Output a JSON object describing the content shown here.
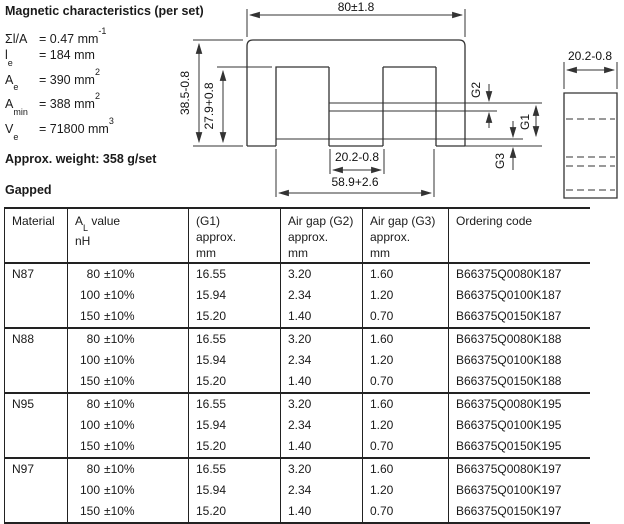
{
  "magnetic": {
    "title": "Magnetic characteristics (per set)",
    "equals": "=",
    "params": [
      {
        "sym_main": "Σl/A",
        "sym_sub": "",
        "value": "0.47",
        "unit": "mm",
        "unit_exp": "-1"
      },
      {
        "sym_main": "l",
        "sym_sub": "e",
        "value": "184",
        "unit": "mm",
        "unit_exp": ""
      },
      {
        "sym_main": "A",
        "sym_sub": "e",
        "value": "390",
        "unit": "mm",
        "unit_exp": "2"
      },
      {
        "sym_main": "A",
        "sym_sub": "min",
        "value": "388",
        "unit": "mm",
        "unit_exp": "2"
      },
      {
        "sym_main": "V",
        "sym_sub": "e",
        "value": "71800",
        "unit": "mm",
        "unit_exp": "3"
      }
    ],
    "weight": "Approx. weight: 358 g/set"
  },
  "drawing": {
    "front": {
      "width": "80±1.8",
      "height": "38.5-0.8",
      "window_height": "27.9+0.8",
      "center_leg": "20.2-0.8",
      "window_span": "58.9+2.6",
      "gap_g1": "G1",
      "gap_g2": "G2",
      "gap_g3": "G3"
    },
    "side": {
      "width": "20.2-0.8"
    }
  },
  "gapped_label": "Gapped",
  "table": {
    "headers": [
      {
        "lines": [
          "Material"
        ]
      },
      {
        "lines": [
          {
            "main": "A",
            "sub": "L",
            "rest": " value"
          },
          "nH"
        ]
      },
      {
        "lines": [
          "(G1)",
          "approx.",
          "mm"
        ]
      },
      {
        "lines": [
          "Air gap (G2)",
          "approx.",
          "mm"
        ]
      },
      {
        "lines": [
          "Air gap (G3)",
          "approx.",
          "mm"
        ]
      },
      {
        "lines": [
          "Ordering code"
        ]
      }
    ],
    "groups": [
      {
        "material": "N87",
        "rows": [
          {
            "al": "80",
            "tol": "±10%",
            "g1": "16.55",
            "g2": "3.20",
            "g3": "1.60",
            "code": "B66375Q0080K187"
          },
          {
            "al": "100",
            "tol": "±10%",
            "g1": "15.94",
            "g2": "2.34",
            "g3": "1.20",
            "code": "B66375Q0100K187"
          },
          {
            "al": "150",
            "tol": "±10%",
            "g1": "15.20",
            "g2": "1.40",
            "g3": "0.70",
            "code": "B66375Q0150K187"
          }
        ]
      },
      {
        "material": "N88",
        "rows": [
          {
            "al": "80",
            "tol": "±10%",
            "g1": "16.55",
            "g2": "3.20",
            "g3": "1.60",
            "code": "B66375Q0080K188"
          },
          {
            "al": "100",
            "tol": "±10%",
            "g1": "15.94",
            "g2": "2.34",
            "g3": "1.20",
            "code": "B66375Q0100K188"
          },
          {
            "al": "150",
            "tol": "±10%",
            "g1": "15.20",
            "g2": "1.40",
            "g3": "0.70",
            "code": "B66375Q0150K188"
          }
        ]
      },
      {
        "material": "N95",
        "rows": [
          {
            "al": "80",
            "tol": "±10%",
            "g1": "16.55",
            "g2": "3.20",
            "g3": "1.60",
            "code": "B66375Q0080K195"
          },
          {
            "al": "100",
            "tol": "±10%",
            "g1": "15.94",
            "g2": "2.34",
            "g3": "1.20",
            "code": "B66375Q0100K195"
          },
          {
            "al": "150",
            "tol": "±10%",
            "g1": "15.20",
            "g2": "1.40",
            "g3": "0.70",
            "code": "B66375Q0150K195"
          }
        ]
      },
      {
        "material": "N97",
        "rows": [
          {
            "al": "80",
            "tol": "±10%",
            "g1": "16.55",
            "g2": "3.20",
            "g3": "1.60",
            "code": "B66375Q0080K197"
          },
          {
            "al": "100",
            "tol": "±10%",
            "g1": "15.94",
            "g2": "2.34",
            "g3": "1.20",
            "code": "B66375Q0100K197"
          },
          {
            "al": "150",
            "tol": "±10%",
            "g1": "15.20",
            "g2": "1.40",
            "g3": "0.70",
            "code": "B66375Q0150K197"
          }
        ]
      }
    ]
  }
}
